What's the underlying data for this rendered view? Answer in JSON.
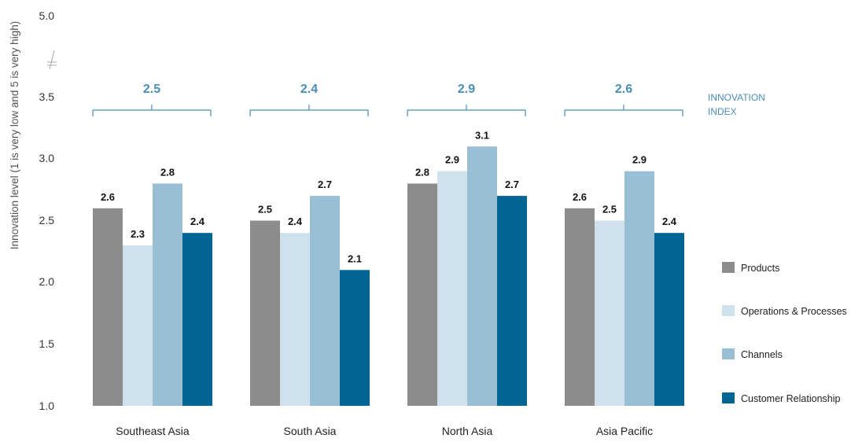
{
  "chart_data": {
    "type": "bar",
    "ylabel": "Innovation level (1 is very low and 5 is very high)",
    "yticks": [
      "1.0",
      "1.5",
      "2.0",
      "2.5",
      "3.0",
      "3.5",
      "5.0"
    ],
    "axis_break": true,
    "categories": [
      "Southeast Asia",
      "South Asia",
      "North Asia",
      "Asia Pacific"
    ],
    "series": [
      {
        "name": "Products",
        "color": "#8c8c8c",
        "values": [
          2.6,
          2.5,
          2.8,
          2.6
        ]
      },
      {
        "name": "Operations & Processes",
        "color": "#cfe1ea",
        "values": [
          2.3,
          2.4,
          2.9,
          2.5
        ]
      },
      {
        "name": "Channels",
        "color": "#98bfd6",
        "values": [
          2.8,
          2.7,
          3.1,
          2.9
        ]
      },
      {
        "name": "Customer Relationship",
        "color": "#006494",
        "values": [
          2.4,
          2.1,
          2.7,
          2.4
        ]
      }
    ],
    "value_labels": [
      [
        "2.6",
        "2.3",
        "2.8",
        "2.4"
      ],
      [
        "2.5",
        "2.4",
        "2.7",
        "2.1"
      ],
      [
        "2.8",
        "2.9",
        "3.1",
        "2.7"
      ],
      [
        "2.6",
        "2.5",
        "2.9",
        "2.4"
      ]
    ],
    "innovation_index": {
      "caption_line1": "INNOVATION",
      "caption_line2": "INDEX",
      "values": [
        "2.5",
        "2.4",
        "2.9",
        "2.6"
      ],
      "color": "#4a8db5"
    },
    "ylim": [
      1.0,
      3.5
    ],
    "legend_position": "right"
  }
}
